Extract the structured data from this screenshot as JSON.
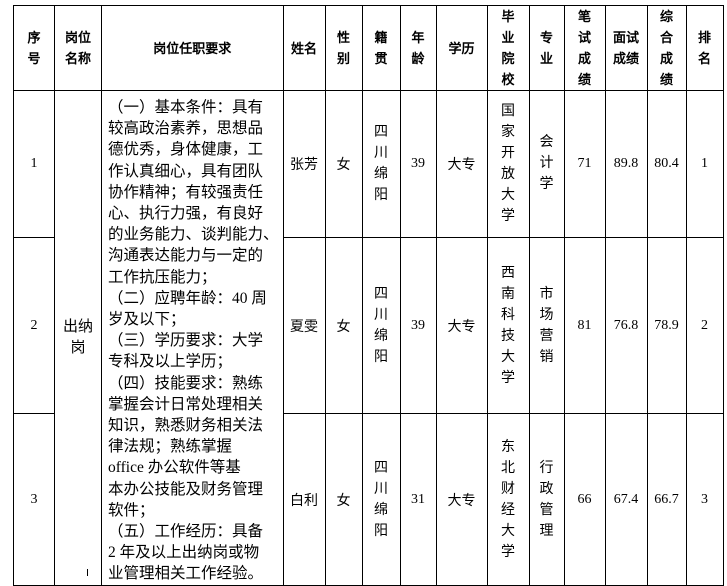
{
  "headers": [
    "序号",
    "岗位名称",
    "岗位任职要求",
    "姓名",
    "性别",
    "籍贯",
    "年龄",
    "学历",
    "毕业院校",
    "专业",
    "笔试成绩",
    "面试成绩",
    "综合成绩",
    "排名"
  ],
  "position": "出纳岗",
  "requirements": [
    "（一）基本条件：具有",
    "较高政治素养，思想品",
    "德优秀，身体健康，工",
    "作认真细心，具有团队",
    "协作精神；有较强责任",
    "心、执行力强，有良好",
    "的业务能力、谈判能力、",
    "沟通表达能力与一定的",
    "工作抗压能力；",
    "（二）应聘年龄：40 周",
    "岁及以下；",
    "（三）学历要求：大学",
    "专科及以上学历；",
    "（四）技能要求：熟练",
    "掌握会计日常处理相关",
    "知识，熟悉财务相关法",
    "律法规；熟练掌握",
    "office 办公软件等基",
    "本办公技能及财务管理",
    "软件；",
    "（五）工作经历：具备",
    "2 年及以上出纳岗或物",
    "业管理相关工作经验。"
  ],
  "rows": [
    {
      "no": "1",
      "name": "张芳",
      "gender": "女",
      "origin": "四川绵阳",
      "age": "39",
      "education": "大专",
      "school": "国家开放大学",
      "major": "会计学",
      "written": "71",
      "interview": "89.8",
      "total": "80.4",
      "rank": "1"
    },
    {
      "no": "2",
      "name": "夏雯",
      "gender": "女",
      "origin": "四川绵阳",
      "age": "39",
      "education": "大专",
      "school": "西南科技大学",
      "major": "市场营销",
      "written": "81",
      "interview": "76.8",
      "total": "78.9",
      "rank": "2"
    },
    {
      "no": "3",
      "name": "白利",
      "gender": "女",
      "origin": "四川绵阳",
      "age": "31",
      "education": "大专",
      "school": "东北财经大学",
      "major": "行政管理",
      "written": "66",
      "interview": "67.4",
      "total": "66.7",
      "rank": "3"
    }
  ]
}
